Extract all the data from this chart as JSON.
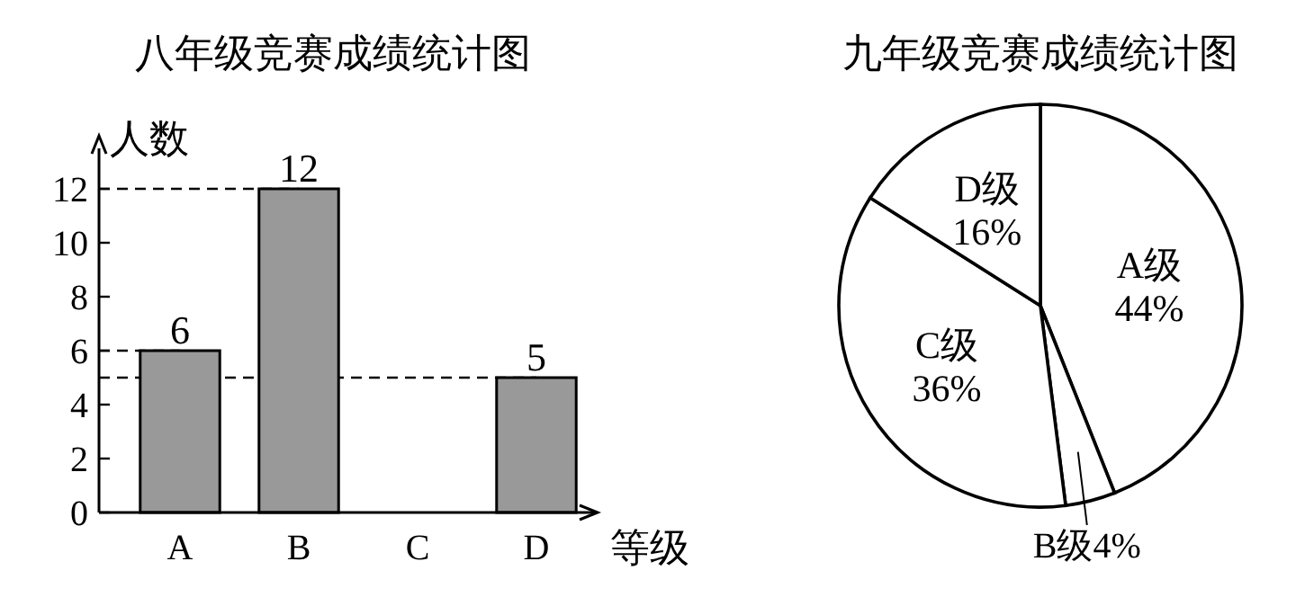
{
  "chart_data": [
    {
      "type": "bar",
      "title": "八年级竞赛成绩统计图",
      "xlabel": "等级",
      "ylabel": "人数",
      "categories": [
        "A",
        "B",
        "C",
        "D"
      ],
      "values": [
        6,
        12,
        null,
        5
      ],
      "value_labels": [
        "6",
        "12",
        null,
        "5"
      ],
      "color": "#999999",
      "ylim": [
        0,
        13.5
      ],
      "yticks": [
        0,
        2,
        4,
        6,
        8,
        10,
        12
      ],
      "grid": false,
      "ref_lines": [
        {
          "axis": "y",
          "value": 12,
          "line_style": "dashed"
        },
        {
          "axis": "y",
          "value": 6,
          "line_style": "dashed"
        },
        {
          "axis": "y",
          "value": 5,
          "line_style": "dashed"
        }
      ]
    },
    {
      "type": "pie",
      "title": "九年级竞赛成绩统计图",
      "categories": [
        "A级",
        "B级",
        "C级",
        "D级"
      ],
      "values": [
        44,
        4,
        36,
        16
      ],
      "value_labels": [
        "44%",
        "4%",
        "36%",
        "16%"
      ],
      "colors": [
        "#ffffff",
        "#ffffff",
        "#ffffff",
        "#ffffff"
      ]
    }
  ]
}
